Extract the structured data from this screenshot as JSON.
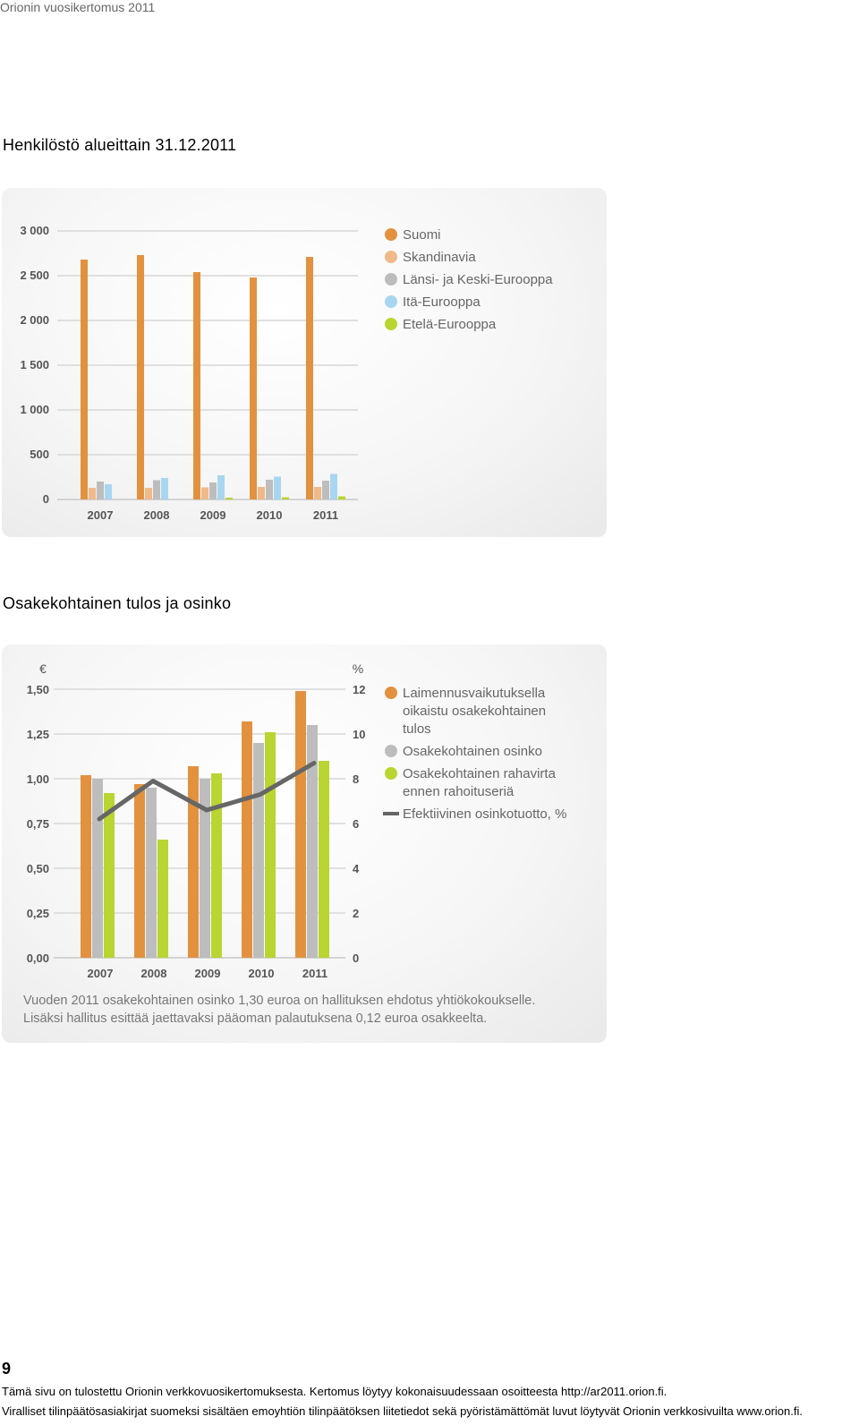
{
  "header": {
    "text": "Orionin vuosikertomus 2011"
  },
  "section1": {
    "title": "Henkilöstö alueittain 31.12.2011"
  },
  "section2": {
    "title": "Osakekohtainen tulos ja osinko"
  },
  "charts": [
    {
      "chart_data": {
        "type": "bar",
        "categories": [
          "2007",
          "2008",
          "2009",
          "2010",
          "2011"
        ],
        "series": [
          {
            "name": "Suomi",
            "color": "#e2923f",
            "values": [
              2680,
              2730,
              2540,
              2480,
              2710
            ]
          },
          {
            "name": "Skandinavia",
            "color": "#f0b98a",
            "values": [
              130,
              130,
              135,
              140,
              140
            ]
          },
          {
            "name": "Länsi- ja Keski-Eurooppa",
            "color": "#bdbdbd",
            "values": [
              200,
              215,
              190,
              220,
              210
            ]
          },
          {
            "name": "Itä-Eurooppa",
            "color": "#a8d6f0",
            "values": [
              170,
              240,
              270,
              255,
              285
            ]
          },
          {
            "name": "Etelä-Eurooppa",
            "color": "#b9d531",
            "values": [
              0,
              0,
              20,
              25,
              35
            ]
          }
        ],
        "yticks": [
          "0",
          "500",
          "1 000",
          "1 500",
          "2 000",
          "2 500",
          "3 000"
        ],
        "ylim": [
          0,
          3000
        ],
        "grid": true,
        "legend": "top-right"
      }
    },
    {
      "chart_data": {
        "type": "bar",
        "categories": [
          "2007",
          "2008",
          "2009",
          "2010",
          "2011"
        ],
        "series": [
          {
            "name": "Laimennusvaikutuksella oikaistu osakekohtainen tulos",
            "legend_lines": [
              "Laimennusvaikutuksella",
              "oikaistu osakekohtainen",
              "tulos"
            ],
            "color": "#e2923f",
            "values": [
              1.02,
              0.97,
              1.07,
              1.32,
              1.49
            ]
          },
          {
            "name": "Osakekohtainen osinko",
            "legend_lines": [
              "Osakekohtainen osinko"
            ],
            "color": "#bdbdbd",
            "values": [
              1.0,
              0.95,
              1.0,
              1.2,
              1.3
            ]
          },
          {
            "name": "Osakekohtainen rahavirta ennen rahoituseriä",
            "legend_lines": [
              "Osakekohtainen rahavirta",
              "ennen rahoituseriä"
            ],
            "color": "#b9d531",
            "values": [
              0.92,
              0.66,
              1.03,
              1.26,
              1.1
            ]
          }
        ],
        "line_series": {
          "name": "Efektiivinen osinkotuotto, %",
          "legend_lines": [
            "Efektiivinen osinkotuotto, %"
          ],
          "color": "#666666",
          "values": [
            6.2,
            7.9,
            6.6,
            7.3,
            8.7
          ]
        },
        "yunit": "€",
        "y2unit": "%",
        "yticks": [
          "0,00",
          "0,25",
          "0,50",
          "0,75",
          "1,00",
          "1,25",
          "1,50"
        ],
        "y2ticks": [
          "0",
          "2",
          "4",
          "6",
          "8",
          "10",
          "12"
        ],
        "ylim": [
          0,
          1.5
        ],
        "y2lim": [
          0,
          12
        ],
        "grid": true,
        "legend": "top-right"
      },
      "note_lines": [
        "Vuoden 2011 osakekohtainen osinko 1,30 euroa on hallituksen ehdotus yhtiökokoukselle.",
        "Lisäksi hallitus esittää jaettavaksi pääoman palautuksena 0,12 euroa osakkeelta."
      ]
    }
  ],
  "page_number": "9",
  "footer": {
    "line1": "Tämä sivu on tulostettu Orionin verkkovuosikertomuksesta. Kertomus löytyy kokonaisuudessaan osoitteesta http://ar2011.orion.fi.",
    "line2": "Viralliset tilinpäätösasiakirjat suomeksi sisältäen emoyhtiön tilinpäätöksen liitetiedot sekä pyöristämättömät luvut löytyvät Orionin verkkosivuilta www.orion.fi."
  }
}
